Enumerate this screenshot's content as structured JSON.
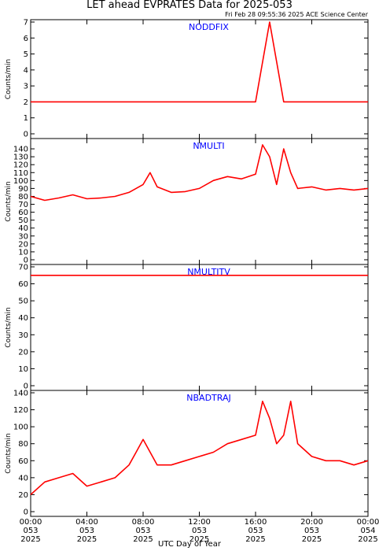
{
  "header": {
    "title": "LET ahead EVPRATES Data for 2025-053",
    "timestamp": "Fri Feb 28 09:55:36 2025 ACE Science Center"
  },
  "xaxis": {
    "title": "UTC Day of Year",
    "ticks": [
      {
        "time": "00:00",
        "doy": "053",
        "year": "2025",
        "hour": 0
      },
      {
        "time": "04:00",
        "doy": "053",
        "year": "2025",
        "hour": 4
      },
      {
        "time": "08:00",
        "doy": "053",
        "year": "2025",
        "hour": 8
      },
      {
        "time": "12:00",
        "doy": "053",
        "year": "2025",
        "hour": 12
      },
      {
        "time": "16:00",
        "doy": "053",
        "year": "2025",
        "hour": 16
      },
      {
        "time": "20:00",
        "doy": "053",
        "year": "2025",
        "hour": 20
      },
      {
        "time": "00:00",
        "doy": "054",
        "year": "2025",
        "hour": 24
      }
    ]
  },
  "colors": {
    "series": "#ff0000",
    "panel_label": "#0000ff",
    "axis": "#000000"
  },
  "chart_data": [
    {
      "type": "line",
      "name": "NODDFIX",
      "ylabel": "Counts/min",
      "ylim": [
        0,
        7
      ],
      "yticks": [
        0,
        1,
        2,
        3,
        4,
        5,
        6,
        7
      ],
      "series": [
        {
          "name": "NODDFIX",
          "x_hours": [
            0,
            2,
            4,
            6,
            8,
            10,
            12,
            14,
            16,
            17,
            18,
            20,
            22,
            24
          ],
          "values": [
            2,
            2,
            2,
            2,
            2,
            2,
            2,
            2,
            2,
            7,
            2,
            2,
            2,
            2
          ]
        }
      ]
    },
    {
      "type": "line",
      "name": "NMULTI",
      "ylabel": "Counts/min",
      "ylim": [
        0,
        150
      ],
      "yticks": [
        0,
        10,
        20,
        30,
        40,
        50,
        60,
        70,
        80,
        90,
        100,
        110,
        120,
        130,
        140
      ],
      "series": [
        {
          "name": "NMULTI",
          "x_hours": [
            0,
            1,
            2,
            3,
            4,
            5,
            6,
            7,
            8,
            8.5,
            9,
            10,
            11,
            12,
            13,
            14,
            15,
            16,
            16.5,
            17,
            17.5,
            18,
            18.5,
            19,
            20,
            21,
            22,
            23,
            24
          ],
          "values": [
            80,
            75,
            78,
            82,
            77,
            78,
            80,
            85,
            95,
            110,
            92,
            85,
            86,
            90,
            100,
            105,
            102,
            108,
            145,
            130,
            95,
            140,
            110,
            90,
            92,
            88,
            90,
            88,
            90
          ]
        }
      ]
    },
    {
      "type": "line",
      "name": "NMULTITV",
      "ylabel": "Counts/min",
      "ylim": [
        0,
        70
      ],
      "yticks": [
        0,
        10,
        20,
        30,
        40,
        50,
        60,
        70
      ],
      "series": [
        {
          "name": "NMULTITV",
          "x_hours": [
            0,
            4,
            8,
            12,
            16,
            20,
            24
          ],
          "values": [
            65,
            65,
            65,
            65,
            65,
            65,
            65
          ]
        }
      ]
    },
    {
      "type": "line",
      "name": "NBADTRAJ",
      "ylabel": "Counts/min",
      "ylim": [
        0,
        140
      ],
      "yticks": [
        0,
        20,
        40,
        60,
        80,
        100,
        120,
        140
      ],
      "series": [
        {
          "name": "NBADTRAJ",
          "x_hours": [
            0,
            1,
            2,
            3,
            4,
            5,
            6,
            7,
            7.5,
            8,
            9,
            10,
            11,
            12,
            13,
            14,
            15,
            16,
            16.5,
            17,
            17.5,
            18,
            18.5,
            19,
            20,
            21,
            22,
            23,
            24
          ],
          "values": [
            20,
            35,
            40,
            45,
            30,
            35,
            40,
            55,
            70,
            85,
            55,
            55,
            60,
            65,
            70,
            80,
            85,
            90,
            130,
            110,
            80,
            90,
            130,
            80,
            65,
            60,
            60,
            55,
            60
          ]
        }
      ]
    }
  ]
}
